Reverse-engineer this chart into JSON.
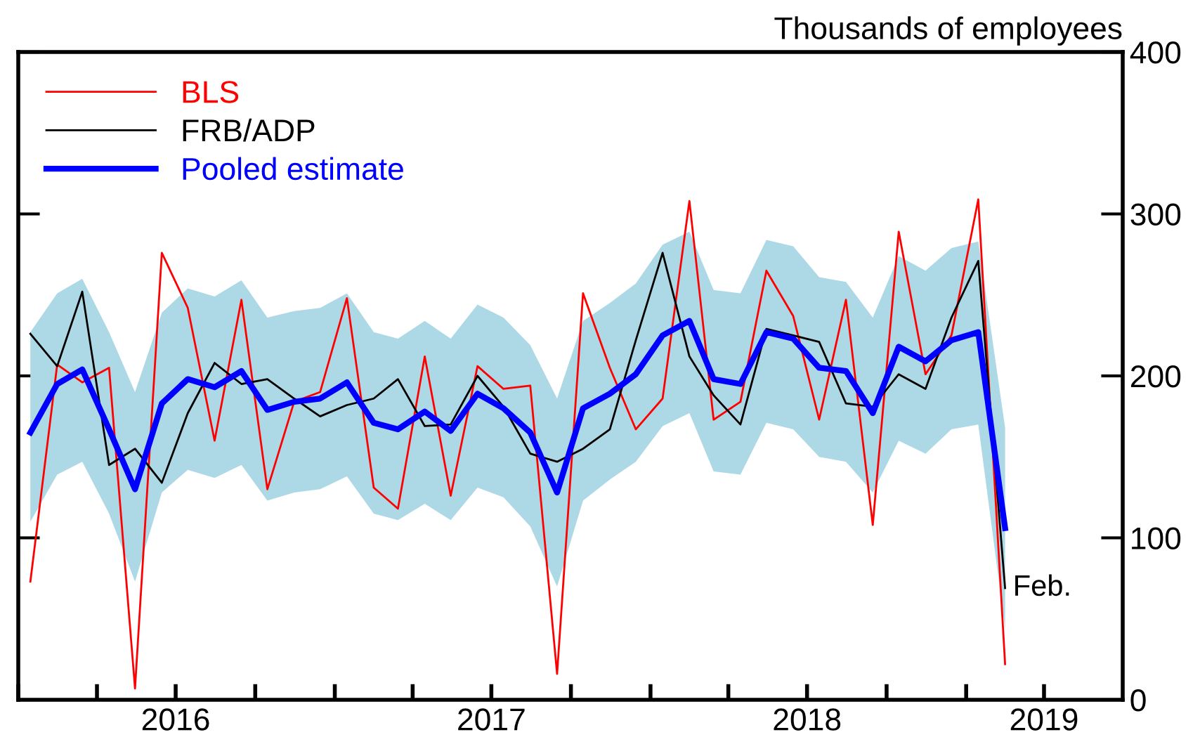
{
  "chart_data": {
    "type": "line",
    "ylabel": "Thousands of employees",
    "x": [
      "2016-01-15",
      "2016-02-15",
      "2016-03-15",
      "2016-04-15",
      "2016-05-15",
      "2016-06-15",
      "2016-07-15",
      "2016-08-15",
      "2016-09-15",
      "2016-10-15",
      "2016-11-15",
      "2016-12-15",
      "2017-01-15",
      "2017-02-15",
      "2017-03-15",
      "2017-04-15",
      "2017-05-15",
      "2017-06-15",
      "2017-07-15",
      "2017-08-15",
      "2017-09-15",
      "2017-10-15",
      "2017-11-15",
      "2017-12-15",
      "2018-01-15",
      "2018-02-15",
      "2018-03-15",
      "2018-04-15",
      "2018-05-15",
      "2018-06-15",
      "2018-07-15",
      "2018-08-15",
      "2018-09-15",
      "2018-10-15",
      "2018-11-15",
      "2018-12-15",
      "2019-01-15",
      "2019-02-15"
    ],
    "series": [
      {
        "name": "BLS",
        "color": "#ff0000",
        "values": [
          73,
          207,
          196,
          205,
          7,
          276,
          242,
          160,
          247,
          130,
          184,
          190,
          248,
          131,
          118,
          212,
          126,
          206,
          192,
          194,
          16,
          251,
          205,
          167,
          186,
          308,
          173,
          184,
          265,
          237,
          173,
          247,
          108,
          289,
          201,
          225,
          309,
          22
        ]
      },
      {
        "name": "FRB/ADP",
        "color": "#000000",
        "values": [
          226,
          206,
          252,
          145,
          155,
          134,
          177,
          208,
          195,
          198,
          186,
          175,
          182,
          186,
          198,
          169,
          170,
          200,
          181,
          152,
          147,
          155,
          167,
          222,
          276,
          212,
          188,
          170,
          229,
          225,
          221,
          183,
          181,
          201,
          192,
          236,
          271,
          69
        ]
      },
      {
        "name": "Pooled estimate",
        "color": "#0000ff",
        "values": [
          165,
          195,
          204,
          167,
          130,
          183,
          198,
          193,
          203,
          179,
          184,
          186,
          196,
          171,
          167,
          178,
          166,
          189,
          180,
          165,
          128,
          180,
          189,
          201,
          225,
          234,
          198,
          195,
          227,
          223,
          205,
          203,
          177,
          218,
          209,
          222,
          227,
          106
        ],
        "lower": [
          110,
          139,
          147,
          115,
          73,
          128,
          142,
          137,
          145,
          123,
          128,
          130,
          138,
          115,
          111,
          121,
          111,
          131,
          125,
          107,
          70,
          123,
          136,
          147,
          169,
          177,
          141,
          139,
          171,
          167,
          150,
          147,
          128,
          160,
          152,
          167,
          170,
          44
        ],
        "upper": [
          227,
          251,
          260,
          227,
          190,
          239,
          254,
          249,
          259,
          236,
          240,
          242,
          251,
          227,
          223,
          234,
          223,
          244,
          236,
          219,
          186,
          234,
          245,
          257,
          281,
          289,
          253,
          251,
          284,
          280,
          261,
          258,
          236,
          274,
          265,
          279,
          283,
          168
        ]
      }
    ],
    "annotations": [
      {
        "text": "Feb.",
        "x": "2019-02-15",
        "y": 69
      }
    ],
    "xlim": [
      "2016-01-01",
      "2019-07-01"
    ],
    "xticks": [
      {
        "value": "2016-01-01",
        "label": null
      },
      {
        "value": "2016-04-01",
        "label": null
      },
      {
        "value": "2016-07-01",
        "label": "2016"
      },
      {
        "value": "2016-10-01",
        "label": null
      },
      {
        "value": "2017-01-01",
        "label": null
      },
      {
        "value": "2017-04-01",
        "label": null
      },
      {
        "value": "2017-07-01",
        "label": "2017"
      },
      {
        "value": "2017-10-01",
        "label": null
      },
      {
        "value": "2018-01-01",
        "label": null
      },
      {
        "value": "2018-04-01",
        "label": null
      },
      {
        "value": "2018-07-01",
        "label": "2018"
      },
      {
        "value": "2018-10-01",
        "label": null
      },
      {
        "value": "2019-01-01",
        "label": null
      },
      {
        "value": "2019-04-01",
        "label": "2019"
      }
    ],
    "ylim": [
      0,
      400
    ],
    "yticks": [
      0,
      100,
      200,
      300,
      400
    ],
    "grid": false,
    "legend": "top left",
    "marker": "none",
    "line_style": "solid"
  }
}
